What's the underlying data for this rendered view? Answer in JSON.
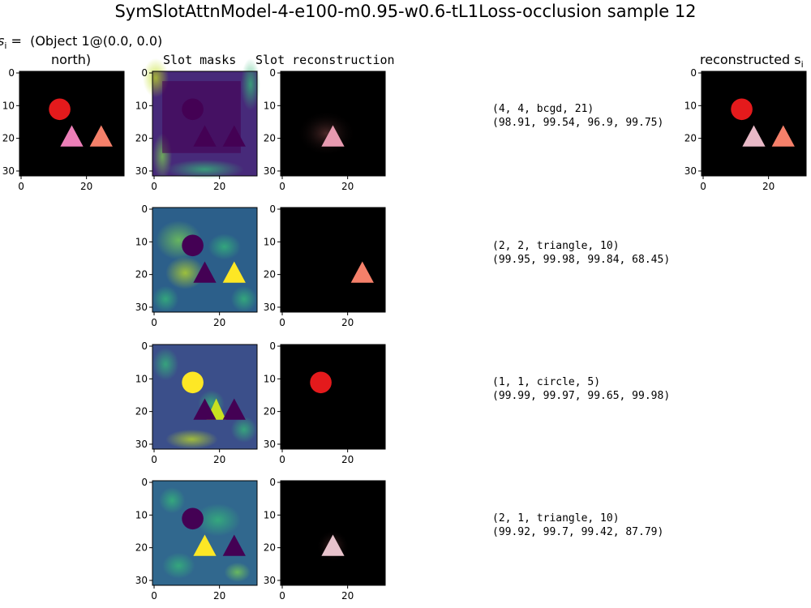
{
  "figure": {
    "title": "SymSlotAttnModel-4-e100-m0.95-w0.6-tL1Loss-occlusion sample 12",
    "left_header_line1": "s",
    "left_header_sub": "i",
    "left_header_rest": " =  (Object 1@(0.0, 0.0)",
    "left_header_line2": "north)",
    "col_slot_masks": "Slot masks",
    "col_slot_recon": "Slot reconstruction",
    "col_reconstructed": "reconstructed s",
    "col_reconstructed_sub": "i"
  },
  "colors": {
    "red_circle": "#e41a1c",
    "pink_triangle": "#ec7fb8",
    "salmon_triangle": "#f5806a",
    "viridis_dark": "#440154",
    "viridis_mid": "#2c5f8a",
    "viridis_teal": "#21918c",
    "viridis_yellow": "#fde725"
  },
  "slots": [
    {
      "info_line1": "(4, 4, bcgd, 21)",
      "info_line2": "(98.91, 99.54, 96.9, 99.75)"
    },
    {
      "info_line1": "(2, 2, triangle, 10)",
      "info_line2": "(99.95, 99.98, 99.84, 68.45)"
    },
    {
      "info_line1": "(1, 1, circle, 5)",
      "info_line2": "(99.99, 99.97, 99.65, 99.98)"
    },
    {
      "info_line1": "(2, 1, triangle, 10)",
      "info_line2": "(99.92, 99.7, 99.42, 87.79)"
    }
  ],
  "chart_data": {
    "type": "image-grid",
    "image_size": [
      32,
      32
    ],
    "x_ticks": [
      0,
      20
    ],
    "x_ticks_main": [
      0,
      20
    ],
    "y_ticks": [
      0,
      10,
      20,
      30
    ],
    "input_x_ticks": [
      0,
      20
    ],
    "rows": 4,
    "columns": [
      "input",
      "Slot masks",
      "Slot reconstruction",
      "info",
      "reconstructed s_i"
    ]
  }
}
